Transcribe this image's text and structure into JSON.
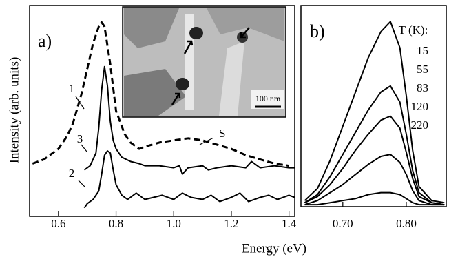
{
  "chart_data": [
    {
      "type": "line",
      "panel_label": "a)",
      "xlabel": "Energy (eV)",
      "ylabel": "Intensity (arb. units)",
      "xlim": [
        0.5,
        1.42
      ],
      "ylim": [
        0,
        1
      ],
      "xticks": [
        0.6,
        0.8,
        {
          "value": 1.0,
          "label": "1.0"
        },
        1.2,
        1.4
      ],
      "inset_scale": "100 nm",
      "annotations": [
        "S"
      ],
      "series": [
        {
          "name": "1",
          "color": "#000",
          "dash": true,
          "x": [
            0.51,
            0.55,
            0.6,
            0.63,
            0.65,
            0.68,
            0.7,
            0.72,
            0.74,
            0.75,
            0.76,
            0.78,
            0.8,
            0.83,
            0.85,
            0.88,
            0.9,
            0.95,
            1.0,
            1.05,
            1.1,
            1.15,
            1.2,
            1.25,
            1.3,
            1.35,
            1.4
          ],
          "values": [
            0.25,
            0.27,
            0.32,
            0.38,
            0.44,
            0.58,
            0.7,
            0.82,
            0.9,
            0.92,
            0.9,
            0.72,
            0.5,
            0.39,
            0.35,
            0.32,
            0.33,
            0.35,
            0.36,
            0.37,
            0.36,
            0.34,
            0.32,
            0.29,
            0.27,
            0.25,
            0.24
          ]
        },
        {
          "name": "3",
          "color": "#000",
          "dash": false,
          "x": [
            0.69,
            0.71,
            0.73,
            0.74,
            0.75,
            0.76,
            0.77,
            0.78,
            0.79,
            0.8,
            0.82,
            0.85,
            0.88,
            0.9,
            0.95,
            1.0,
            1.02,
            1.03,
            1.05,
            1.1,
            1.12,
            1.15,
            1.2,
            1.25,
            1.27,
            1.3,
            1.35,
            1.4,
            1.42
          ],
          "values": [
            0.22,
            0.24,
            0.3,
            0.42,
            0.6,
            0.71,
            0.62,
            0.45,
            0.36,
            0.32,
            0.28,
            0.26,
            0.25,
            0.24,
            0.24,
            0.23,
            0.24,
            0.2,
            0.23,
            0.24,
            0.22,
            0.23,
            0.24,
            0.23,
            0.26,
            0.23,
            0.24,
            0.23,
            0.23
          ]
        },
        {
          "name": "2",
          "color": "#000",
          "dash": false,
          "x": [
            0.69,
            0.7,
            0.72,
            0.74,
            0.75,
            0.76,
            0.77,
            0.78,
            0.79,
            0.8,
            0.82,
            0.84,
            0.87,
            0.9,
            0.93,
            0.96,
            1.0,
            1.03,
            1.06,
            1.1,
            1.13,
            1.16,
            1.2,
            1.23,
            1.26,
            1.3,
            1.33,
            1.36,
            1.4,
            1.42
          ],
          "values": [
            0.04,
            0.06,
            0.08,
            0.12,
            0.2,
            0.29,
            0.31,
            0.3,
            0.22,
            0.15,
            0.1,
            0.08,
            0.11,
            0.08,
            0.09,
            0.1,
            0.08,
            0.11,
            0.09,
            0.08,
            0.1,
            0.07,
            0.09,
            0.11,
            0.07,
            0.09,
            0.1,
            0.08,
            0.1,
            0.09
          ]
        }
      ]
    },
    {
      "type": "line",
      "panel_label": "b)",
      "legend_title": "T (K):",
      "xlim": [
        0.634,
        0.863
      ],
      "ylim": [
        0,
        1
      ],
      "xticks": [
        {
          "value": 0.7,
          "label": "0.70"
        },
        {
          "value": 0.8,
          "label": "0.80"
        }
      ],
      "x": [
        0.64,
        0.66,
        0.68,
        0.7,
        0.72,
        0.74,
        0.76,
        0.775,
        0.79,
        0.8,
        0.81,
        0.82,
        0.84,
        0.86
      ],
      "series": [
        {
          "name": "15",
          "color": "#000",
          "values": [
            0.03,
            0.09,
            0.23,
            0.4,
            0.57,
            0.74,
            0.87,
            0.92,
            0.79,
            0.55,
            0.28,
            0.1,
            0.03,
            0.02
          ]
        },
        {
          "name": "55",
          "color": "#000",
          "values": [
            0.02,
            0.06,
            0.15,
            0.26,
            0.37,
            0.48,
            0.57,
            0.6,
            0.52,
            0.36,
            0.18,
            0.07,
            0.02,
            0.01
          ]
        },
        {
          "name": "83",
          "color": "#000",
          "values": [
            0.02,
            0.05,
            0.11,
            0.19,
            0.28,
            0.36,
            0.43,
            0.45,
            0.39,
            0.27,
            0.14,
            0.05,
            0.02,
            0.01
          ]
        },
        {
          "name": "120",
          "color": "#000",
          "values": [
            0.01,
            0.03,
            0.07,
            0.11,
            0.16,
            0.21,
            0.25,
            0.26,
            0.22,
            0.16,
            0.08,
            0.03,
            0.01,
            0.01
          ]
        },
        {
          "name": "220",
          "color": "#000",
          "values": [
            0.01,
            0.01,
            0.02,
            0.03,
            0.04,
            0.06,
            0.07,
            0.07,
            0.06,
            0.04,
            0.02,
            0.01,
            0.01,
            0.01
          ]
        }
      ]
    }
  ]
}
